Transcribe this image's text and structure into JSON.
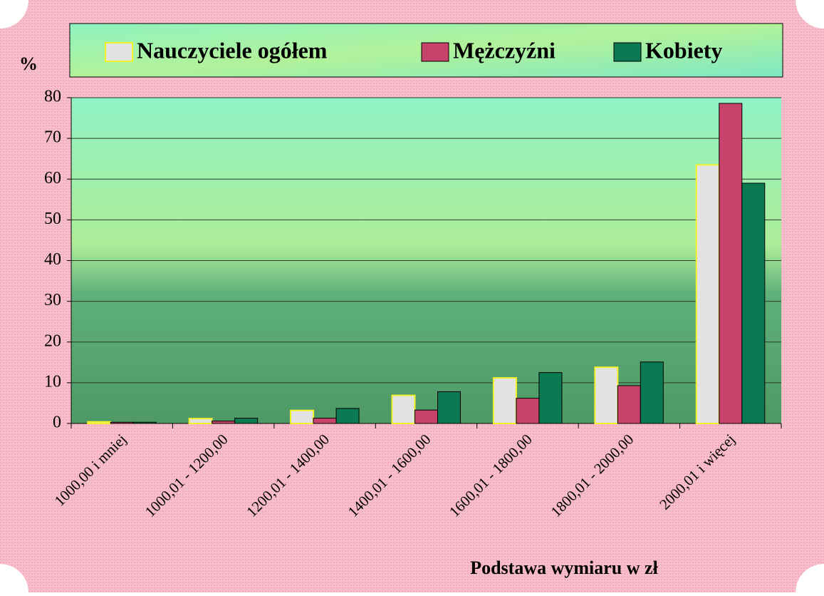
{
  "chart_data": {
    "type": "bar",
    "y_label": "%",
    "x_label": "Podstawa wymiaru w zł",
    "categories": [
      "1000,00 i mniej",
      "1000,01 - 1200,00",
      "1200,01 - 1400,00",
      "1400,01 - 1600,00",
      "1600,01 - 1800,00",
      "1800,01 - 2000,00",
      "2000,01 i więcej"
    ],
    "series": [
      {
        "name": "Nauczyciele ogółem",
        "color": "#e2e2e2",
        "values": [
          0.4,
          1.2,
          3.2,
          6.9,
          11.2,
          13.8,
          63.5
        ]
      },
      {
        "name": "Mężczyźni",
        "color": "#c8436c",
        "values": [
          0.3,
          0.6,
          1.3,
          3.3,
          6.2,
          9.3,
          78.6
        ]
      },
      {
        "name": "Kobiety",
        "color": "#0b7a52",
        "values": [
          0.3,
          1.3,
          3.7,
          7.8,
          12.5,
          15.1,
          59.0
        ]
      }
    ],
    "ylim": [
      0,
      80
    ],
    "yticks": [
      0,
      10,
      20,
      30,
      40,
      50,
      60,
      70,
      80
    ],
    "grid": true,
    "legend": "top"
  }
}
